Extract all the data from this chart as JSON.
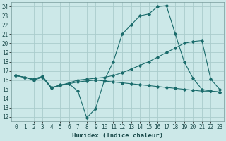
{
  "xlabel": "Humidex (Indice chaleur)",
  "bg_color": "#cce8e8",
  "grid_color": "#aacccc",
  "line_color": "#1a6b6b",
  "x_ticks": [
    0,
    1,
    2,
    3,
    4,
    5,
    6,
    7,
    8,
    9,
    10,
    11,
    12,
    13,
    14,
    15,
    16,
    17,
    18,
    19,
    20,
    21,
    22,
    23
  ],
  "y_ticks": [
    12,
    13,
    14,
    15,
    16,
    17,
    18,
    19,
    20,
    21,
    22,
    23,
    24
  ],
  "ylim": [
    11.5,
    24.5
  ],
  "xlim": [
    -0.5,
    23.5
  ],
  "line1_x": [
    0,
    1,
    2,
    3,
    4,
    5,
    6,
    7,
    8,
    9,
    10,
    11,
    12,
    13,
    14,
    15,
    16,
    17,
    18,
    19,
    20,
    21,
    22,
    23
  ],
  "line1_y": [
    16.5,
    16.3,
    16.0,
    16.3,
    15.1,
    15.5,
    15.6,
    14.8,
    11.9,
    12.9,
    16.0,
    18.0,
    21.0,
    22.0,
    23.0,
    23.2,
    24.0,
    24.1,
    21.0,
    18.0,
    16.2,
    15.0,
    14.8,
    14.7
  ],
  "line2_x": [
    0,
    1,
    2,
    3,
    4,
    5,
    6,
    7,
    8,
    9,
    10,
    11,
    12,
    13,
    14,
    15,
    16,
    17,
    18,
    19,
    20,
    21,
    22,
    23
  ],
  "line2_y": [
    16.5,
    16.3,
    16.1,
    16.4,
    15.2,
    15.4,
    15.7,
    16.0,
    16.1,
    16.2,
    16.3,
    16.5,
    16.8,
    17.2,
    17.6,
    18.0,
    18.5,
    19.0,
    19.5,
    20.0,
    20.2,
    20.3,
    16.1,
    15.0
  ],
  "line3_x": [
    0,
    1,
    2,
    3,
    4,
    5,
    6,
    7,
    8,
    9,
    10,
    11,
    12,
    13,
    14,
    15,
    16,
    17,
    18,
    19,
    20,
    21,
    22,
    23
  ],
  "line3_y": [
    16.5,
    16.3,
    16.1,
    16.4,
    15.2,
    15.4,
    15.6,
    15.8,
    15.9,
    16.0,
    15.9,
    15.8,
    15.7,
    15.6,
    15.5,
    15.4,
    15.3,
    15.2,
    15.1,
    15.0,
    14.9,
    14.8,
    14.8,
    14.7
  ],
  "tick_fontsize": 5.5,
  "xlabel_fontsize": 6.5
}
